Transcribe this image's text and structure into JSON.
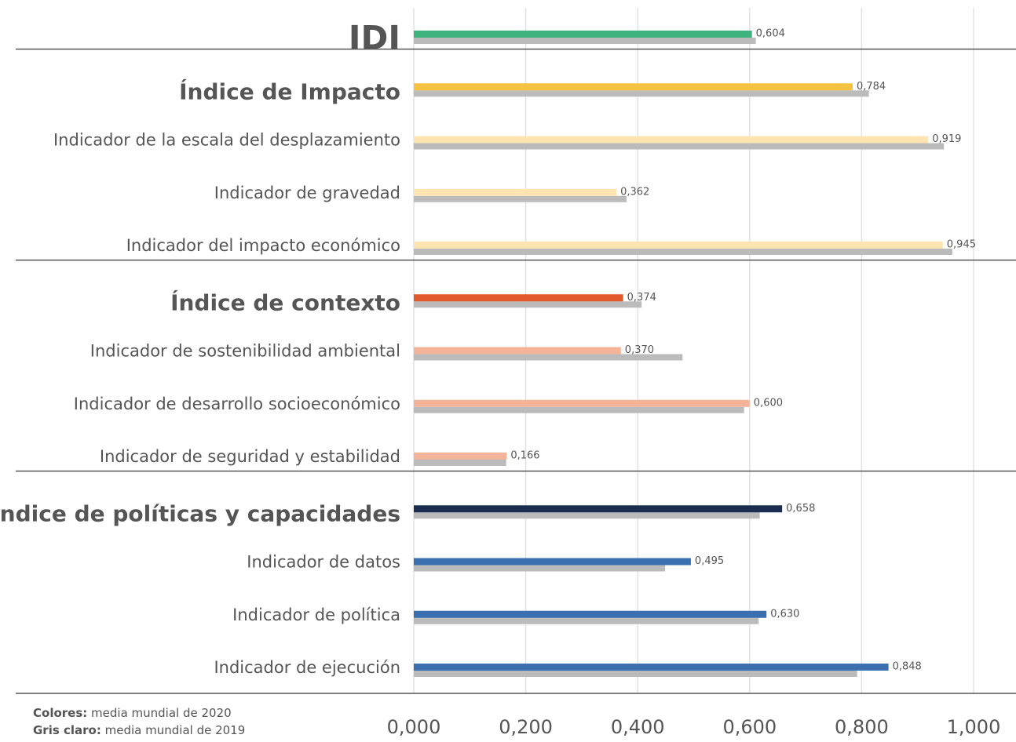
{
  "chart_data": {
    "type": "bar",
    "orientation": "horizontal",
    "categories": [
      "IDI",
      "Índice de Impacto",
      "Indicador de la escala del desplazamiento",
      "Indicador de gravedad",
      "Indicador del impacto económico",
      "Índice de contexto",
      "Indicador de sostenibilidad ambiental",
      "Indicador de desarrollo socioeconómico",
      "Indicador de seguridad y estabilidad",
      "Índice de políticas y capacidades",
      "Indicador de datos",
      "Indicador de política",
      "Indicador de ejecución"
    ],
    "headers": [
      true,
      true,
      false,
      false,
      false,
      true,
      false,
      false,
      false,
      true,
      false,
      false,
      false
    ],
    "series": [
      {
        "name": "media mundial de 2020",
        "colors": [
          "#3db27d",
          "#f5c242",
          "#fde4b0",
          "#fde4b0",
          "#fde4b0",
          "#e05a2b",
          "#f4b49a",
          "#f4b49a",
          "#f4b49a",
          "#1c2e50",
          "#3a6fb0",
          "#3a6fb0",
          "#3a6fb0"
        ],
        "values": [
          0.604,
          0.784,
          0.919,
          0.362,
          0.945,
          0.374,
          0.37,
          0.6,
          0.166,
          0.658,
          0.495,
          0.63,
          0.848
        ],
        "value_labels": [
          "0,604",
          "0,784",
          "0,919",
          "0,362",
          "0,945",
          "0,374",
          "0,370",
          "0,600",
          "0,166",
          "0,658",
          "0,495",
          "0,630",
          "0,848"
        ]
      },
      {
        "name": "media mundial de 2019",
        "color": "#bbbbbb",
        "values": [
          0.611,
          0.813,
          0.947,
          0.38,
          0.962,
          0.407,
          0.48,
          0.59,
          0.165,
          0.618,
          0.449,
          0.616,
          0.792
        ]
      }
    ],
    "xlim": [
      0,
      1
    ],
    "xticks": [
      {
        "value": 0,
        "label": "0,000"
      },
      {
        "value": 0.2,
        "label": "0,200"
      },
      {
        "value": 0.4,
        "label": "0,400"
      },
      {
        "value": 0.6,
        "label": "0,600"
      },
      {
        "value": 0.8,
        "label": "0,800"
      },
      {
        "value": 1,
        "label": "1,000"
      }
    ],
    "grid": true,
    "legend": [
      {
        "label": "Colores:",
        "text": "media mundial de 2020"
      },
      {
        "label": "Gris claro:",
        "text": "media mundial de 2019"
      }
    ]
  }
}
